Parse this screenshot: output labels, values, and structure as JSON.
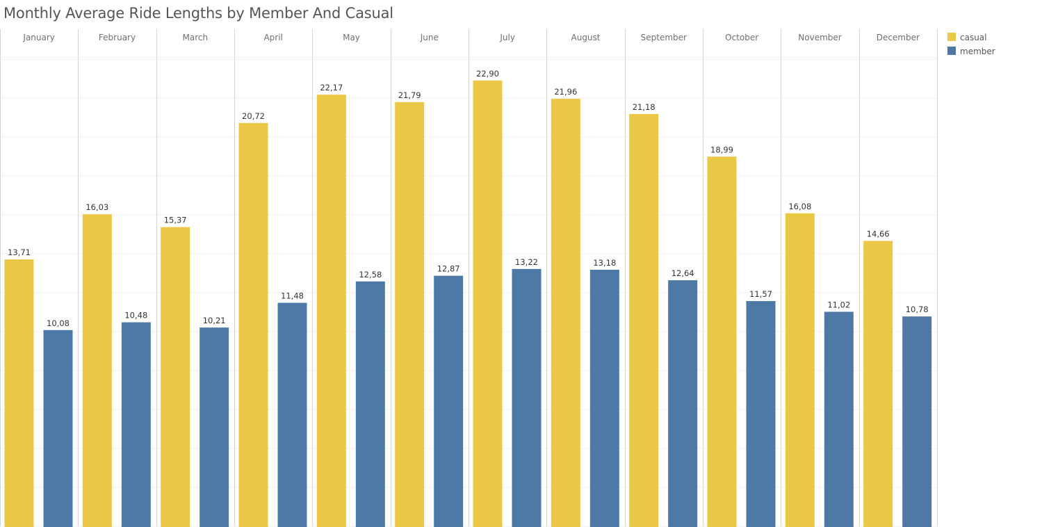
{
  "chart_data": {
    "type": "bar",
    "title": "Monthly Average Ride Lengths by Member And Casual",
    "categories": [
      "January",
      "February",
      "March",
      "April",
      "May",
      "June",
      "July",
      "August",
      "September",
      "October",
      "November",
      "December"
    ],
    "series": [
      {
        "name": "casual",
        "color": "#EAC846",
        "values": [
          13.71,
          16.03,
          15.37,
          20.72,
          22.17,
          21.79,
          22.9,
          21.96,
          21.18,
          18.99,
          16.08,
          14.66
        ],
        "labels": [
          "13,71",
          "16,03",
          "15,37",
          "20,72",
          "22,17",
          "21,79",
          "22,90",
          "21,96",
          "21,18",
          "18,99",
          "16,08",
          "14,66"
        ]
      },
      {
        "name": "member",
        "color": "#4E79A7",
        "values": [
          10.08,
          10.48,
          10.21,
          11.48,
          12.58,
          12.87,
          13.22,
          13.18,
          12.64,
          11.57,
          11.02,
          10.78
        ],
        "labels": [
          "10,08",
          "10,48",
          "10,21",
          "11,48",
          "12,58",
          "12,87",
          "13,22",
          "13,18",
          "12,64",
          "11,57",
          "11,02",
          "10,78"
        ]
      }
    ],
    "ylim": [
      0,
      24
    ],
    "grid": true,
    "legend_position": "right"
  }
}
